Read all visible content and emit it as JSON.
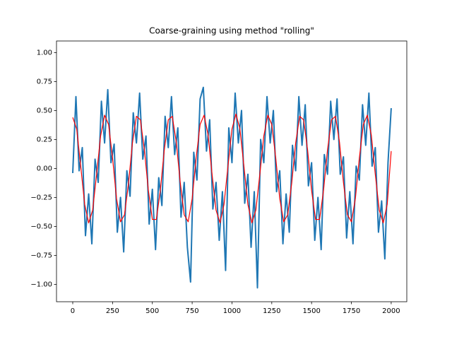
{
  "chart_data": {
    "type": "line",
    "title": "Coarse-graining using method \"rolling\"",
    "xlim": [
      -102,
      2098
    ],
    "ylim": [
      -1.15,
      1.1
    ],
    "xticks": [
      0,
      250,
      500,
      750,
      1000,
      1250,
      1500,
      1750,
      2000
    ],
    "yticks": [
      {
        "value": -1,
        "label": "−1.00"
      },
      {
        "value": -0.75,
        "label": "−0.75"
      },
      {
        "value": -0.5,
        "label": "−0.50"
      },
      {
        "value": -0.25,
        "label": "−0.25"
      },
      {
        "value": 0,
        "label": "0.00"
      },
      {
        "value": 0.25,
        "label": "0.25"
      },
      {
        "value": 0.5,
        "label": "0.50"
      },
      {
        "value": 0.75,
        "label": "0.75"
      },
      {
        "value": 1,
        "label": "1.00"
      }
    ],
    "grid": false,
    "series": [
      {
        "color": "#1f77b4",
        "width": 2,
        "x": [
          0,
          20,
          40,
          60,
          80,
          100,
          120,
          140,
          160,
          180,
          200,
          220,
          240,
          260,
          280,
          300,
          320,
          340,
          360,
          380,
          400,
          420,
          440,
          460,
          480,
          500,
          520,
          540,
          560,
          580,
          600,
          620,
          640,
          660,
          680,
          700,
          720,
          740,
          760,
          780,
          800,
          820,
          840,
          860,
          880,
          900,
          920,
          940,
          960,
          980,
          1000,
          1020,
          1040,
          1060,
          1080,
          1100,
          1120,
          1140,
          1160,
          1180,
          1200,
          1220,
          1240,
          1260,
          1280,
          1300,
          1320,
          1340,
          1360,
          1380,
          1400,
          1420,
          1440,
          1460,
          1480,
          1500,
          1520,
          1540,
          1560,
          1580,
          1600,
          1620,
          1640,
          1660,
          1680,
          1700,
          1720,
          1740,
          1760,
          1780,
          1800,
          1820,
          1840,
          1860,
          1880,
          1900,
          1920,
          1940,
          1960,
          1980,
          2000
        ],
        "values": [
          -0.04,
          0.62,
          -0.02,
          0.18,
          -0.58,
          -0.22,
          -0.65,
          0.08,
          -0.12,
          0.58,
          0.22,
          0.68,
          0.05,
          0.21,
          -0.55,
          -0.25,
          -0.72,
          -0.02,
          -0.24,
          0.48,
          0.22,
          0.65,
          0.08,
          0.28,
          -0.48,
          -0.18,
          -0.7,
          -0.08,
          -0.32,
          0.45,
          0.18,
          0.62,
          0.12,
          0.35,
          -0.42,
          -0.12,
          -0.68,
          -0.98,
          0.14,
          -0.1,
          0.6,
          0.7,
          0.15,
          0.42,
          -0.35,
          -0.12,
          -0.62,
          -0.2,
          -0.88,
          0.35,
          0.05,
          0.65,
          0.22,
          0.5,
          -0.3,
          -0.05,
          -0.68,
          -0.2,
          -1.03,
          0.25,
          0.05,
          0.62,
          0.22,
          0.5,
          -0.2,
          -0.02,
          -0.65,
          -0.22,
          -0.55,
          0.2,
          -0.02,
          0.62,
          0.2,
          0.55,
          -0.15,
          0.05,
          -0.62,
          -0.25,
          -0.7,
          0.12,
          -0.05,
          0.58,
          0.25,
          0.6,
          -0.05,
          0.1,
          -0.6,
          -0.2,
          -0.65,
          0.02,
          -0.1,
          0.55,
          0.2,
          0.65,
          0.02,
          0.18,
          -0.55,
          -0.28,
          -0.78,
          0.05,
          0.52
        ]
      },
      {
        "color": "red",
        "width": 1.2,
        "x": [
          0,
          25,
          50,
          75,
          100,
          125,
          150,
          175,
          200,
          225,
          250,
          275,
          300,
          325,
          350,
          375,
          400,
          425,
          450,
          475,
          500,
          525,
          550,
          575,
          600,
          625,
          650,
          675,
          700,
          725,
          750,
          775,
          800,
          825,
          850,
          875,
          900,
          925,
          950,
          975,
          1000,
          1025,
          1050,
          1075,
          1100,
          1125,
          1150,
          1175,
          1200,
          1225,
          1250,
          1275,
          1300,
          1325,
          1350,
          1375,
          1400,
          1425,
          1450,
          1475,
          1500,
          1525,
          1550,
          1575,
          1600,
          1625,
          1650,
          1675,
          1700,
          1725,
          1750,
          1775,
          1800,
          1825,
          1850,
          1875,
          1900,
          1925,
          1950,
          1975,
          2000
        ],
        "values": [
          0.44,
          0.34,
          0.02,
          -0.31,
          -0.47,
          -0.36,
          -0.05,
          0.28,
          0.46,
          0.38,
          0.09,
          -0.26,
          -0.46,
          -0.4,
          -0.13,
          0.22,
          0.45,
          0.42,
          0.16,
          -0.19,
          -0.44,
          -0.44,
          -0.19,
          0.16,
          0.42,
          0.45,
          0.23,
          -0.12,
          -0.4,
          -0.46,
          -0.26,
          0.09,
          0.38,
          0.46,
          0.29,
          -0.05,
          -0.36,
          -0.47,
          -0.31,
          0.02,
          0.34,
          0.47,
          0.34,
          0.02,
          -0.31,
          -0.47,
          -0.36,
          -0.05,
          0.28,
          0.46,
          0.38,
          0.09,
          -0.26,
          -0.46,
          -0.4,
          -0.13,
          0.22,
          0.45,
          0.42,
          0.16,
          -0.19,
          -0.44,
          -0.44,
          -0.19,
          0.16,
          0.42,
          0.45,
          0.23,
          -0.12,
          -0.4,
          -0.46,
          -0.26,
          0.09,
          0.38,
          0.46,
          0.29,
          -0.05,
          -0.36,
          -0.47,
          -0.31,
          0.15
        ]
      }
    ]
  }
}
